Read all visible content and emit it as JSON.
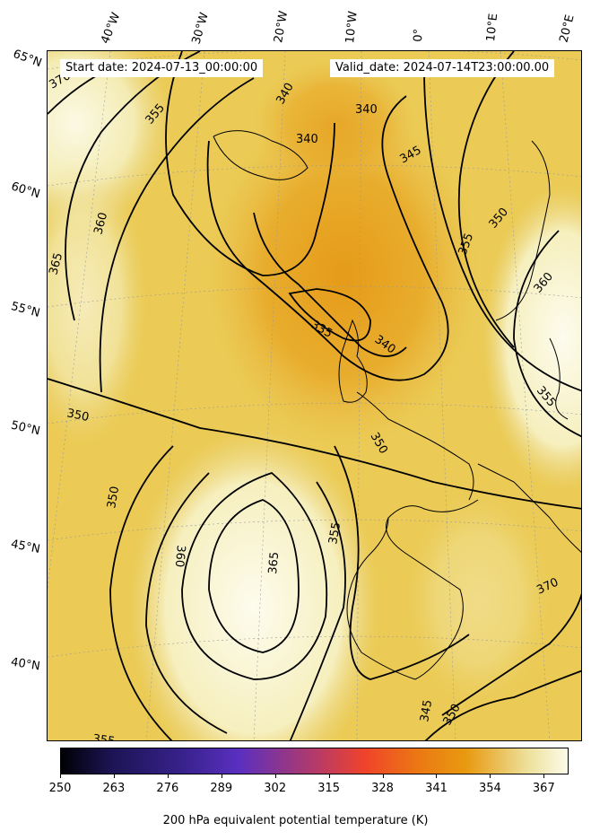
{
  "map": {
    "start_date": "Start date: 2024-07-13_00:00:00",
    "valid_date": "Valid_date: 2024-07-14T23:00:00.00",
    "lon_labels": [
      "40°W",
      "30°W",
      "20°W",
      "10°W",
      "0°",
      "10°E",
      "20°E"
    ],
    "lat_labels": [
      "65°N",
      "60°N",
      "55°N",
      "50°N",
      "45°N",
      "40°N"
    ],
    "contour_labels": [
      "370",
      "355",
      "360",
      "365",
      "340",
      "340",
      "340",
      "345",
      "335",
      "340",
      "350",
      "350",
      "360",
      "365",
      "355",
      "350",
      "355",
      "350",
      "355",
      "360",
      "370",
      "345",
      "350",
      "355"
    ],
    "colors": {
      "low": "#000004",
      "mid_purple": "#5a2fc0",
      "mid_red": "#f0432a",
      "high_orange": "#e89a10",
      "top_cream": "#fcfbe8"
    }
  },
  "colorbar": {
    "ticks": [
      "250",
      "263",
      "276",
      "289",
      "302",
      "315",
      "328",
      "341",
      "354",
      "367"
    ],
    "label": "200 hPa equivalent potential temperature (K)"
  }
}
